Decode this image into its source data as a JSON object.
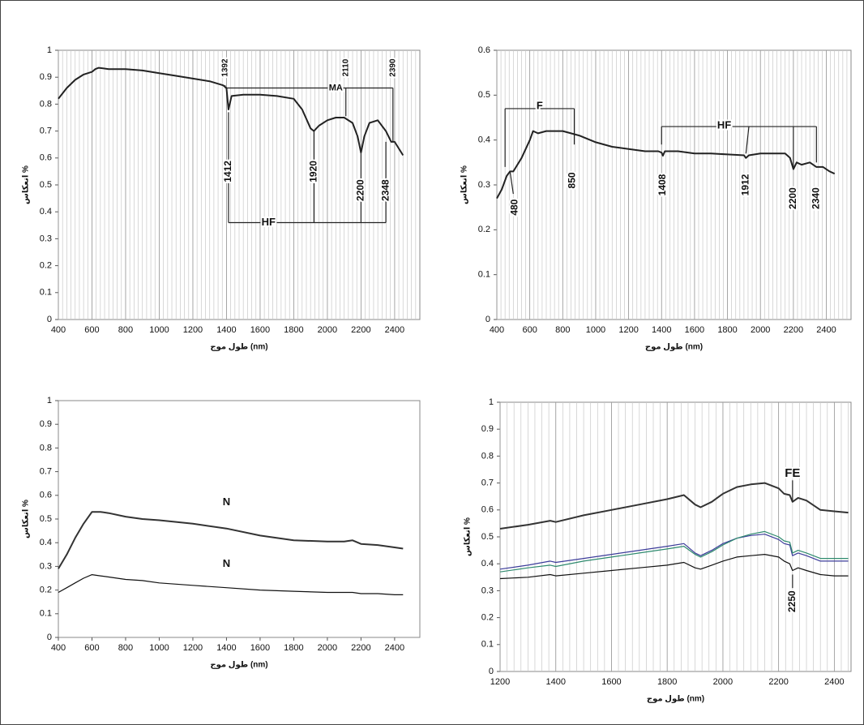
{
  "chart_data": [
    {
      "type": "line",
      "xlabel": "طول موج (nm)",
      "ylabel": "انعکاس %",
      "grid": true,
      "xlim": [
        400,
        2550
      ],
      "ylim": [
        0,
        1
      ],
      "xticks": [
        400,
        600,
        800,
        1000,
        1200,
        1400,
        1600,
        1800,
        2000,
        2200,
        2400
      ],
      "yticks": [
        0,
        0.1,
        0.2,
        0.3,
        0.4,
        0.5,
        0.6,
        0.7,
        0.8,
        0.9,
        1
      ],
      "x": [
        400,
        450,
        500,
        550,
        600,
        620,
        640,
        700,
        800,
        900,
        1000,
        1100,
        1200,
        1300,
        1380,
        1400,
        1412,
        1430,
        1500,
        1600,
        1700,
        1800,
        1850,
        1900,
        1920,
        1950,
        2000,
        2050,
        2100,
        2150,
        2180,
        2200,
        2220,
        2250,
        2300,
        2348,
        2380,
        2400,
        2450
      ],
      "series": [
        {
          "color": "#222222",
          "values": [
            0.82,
            0.86,
            0.89,
            0.91,
            0.92,
            0.93,
            0.935,
            0.93,
            0.93,
            0.925,
            0.915,
            0.905,
            0.895,
            0.885,
            0.87,
            0.86,
            0.78,
            0.83,
            0.835,
            0.835,
            0.83,
            0.82,
            0.78,
            0.71,
            0.7,
            0.72,
            0.74,
            0.75,
            0.75,
            0.73,
            0.68,
            0.62,
            0.68,
            0.73,
            0.74,
            0.7,
            0.66,
            0.66,
            0.61
          ]
        }
      ],
      "annotations": [
        "1392",
        "2110",
        "2390",
        "MA",
        "1412",
        "1920",
        "2200",
        "2348",
        "HF"
      ]
    },
    {
      "type": "line",
      "xlabel": "طول موج (nm)",
      "ylabel": "انعکاس %",
      "grid": true,
      "xlim": [
        400,
        2550
      ],
      "ylim": [
        0,
        0.6
      ],
      "xticks": [
        400,
        600,
        800,
        1000,
        1200,
        1400,
        1600,
        1800,
        2000,
        2200,
        2400
      ],
      "yticks": [
        0,
        0.1,
        0.2,
        0.3,
        0.4,
        0.5,
        0.6
      ],
      "x": [
        400,
        430,
        460,
        480,
        500,
        550,
        600,
        620,
        650,
        700,
        800,
        850,
        900,
        1000,
        1100,
        1200,
        1300,
        1380,
        1400,
        1408,
        1420,
        1500,
        1600,
        1700,
        1800,
        1900,
        1912,
        1930,
        2000,
        2100,
        2150,
        2180,
        2200,
        2220,
        2250,
        2300,
        2340,
        2380,
        2420,
        2450
      ],
      "series": [
        {
          "color": "#222222",
          "values": [
            0.27,
            0.29,
            0.32,
            0.33,
            0.33,
            0.36,
            0.4,
            0.42,
            0.415,
            0.42,
            0.42,
            0.415,
            0.41,
            0.395,
            0.385,
            0.38,
            0.375,
            0.375,
            0.372,
            0.365,
            0.375,
            0.375,
            0.37,
            0.37,
            0.368,
            0.366,
            0.36,
            0.366,
            0.37,
            0.37,
            0.37,
            0.36,
            0.335,
            0.35,
            0.345,
            0.35,
            0.34,
            0.34,
            0.33,
            0.325
          ]
        }
      ],
      "annotations": [
        "F",
        "HF",
        "480",
        "850",
        "1408",
        "1912",
        "2200",
        "2340"
      ]
    },
    {
      "type": "line",
      "xlabel": "طول موج (nm)",
      "ylabel": "انعکاس %",
      "grid": false,
      "xlim": [
        400,
        2550
      ],
      "ylim": [
        0,
        1
      ],
      "xticks": [
        400,
        600,
        800,
        1000,
        1200,
        1400,
        1600,
        1800,
        2000,
        2200,
        2400
      ],
      "yticks": [
        0,
        0.1,
        0.2,
        0.3,
        0.4,
        0.5,
        0.6,
        0.7,
        0.8,
        0.9,
        1
      ],
      "x": [
        400,
        450,
        500,
        550,
        600,
        650,
        700,
        800,
        900,
        1000,
        1200,
        1400,
        1600,
        1800,
        2000,
        2100,
        2150,
        2200,
        2300,
        2400,
        2450
      ],
      "series": [
        {
          "color": "#333333",
          "values": [
            0.29,
            0.35,
            0.42,
            0.48,
            0.53,
            0.53,
            0.525,
            0.51,
            0.5,
            0.495,
            0.48,
            0.46,
            0.43,
            0.41,
            0.405,
            0.405,
            0.41,
            0.395,
            0.39,
            0.38,
            0.375
          ]
        },
        {
          "color": "#111111",
          "values": [
            0.19,
            0.21,
            0.23,
            0.25,
            0.265,
            0.26,
            0.255,
            0.245,
            0.24,
            0.23,
            0.22,
            0.21,
            0.2,
            0.195,
            0.19,
            0.19,
            0.19,
            0.185,
            0.185,
            0.18,
            0.18
          ]
        }
      ],
      "annotations": [
        "N",
        "N"
      ]
    },
    {
      "type": "line",
      "xlabel": "طول موج (nm)",
      "ylabel": "انعکاس %",
      "grid": true,
      "xlim": [
        1200,
        2460
      ],
      "ylim": [
        0,
        1
      ],
      "xticks": [
        1200,
        1400,
        1600,
        1800,
        2000,
        2200,
        2400
      ],
      "yticks": [
        0,
        0.1,
        0.2,
        0.3,
        0.4,
        0.5,
        0.6,
        0.7,
        0.8,
        0.9,
        1
      ],
      "x": [
        1200,
        1300,
        1380,
        1400,
        1500,
        1600,
        1700,
        1800,
        1860,
        1900,
        1920,
        1960,
        2000,
        2050,
        2100,
        2150,
        2200,
        2220,
        2240,
        2250,
        2270,
        2300,
        2350,
        2400,
        2450
      ],
      "series": [
        {
          "color": "#333333",
          "values": [
            0.53,
            0.545,
            0.56,
            0.555,
            0.58,
            0.6,
            0.62,
            0.64,
            0.655,
            0.62,
            0.61,
            0.63,
            0.66,
            0.685,
            0.695,
            0.7,
            0.68,
            0.66,
            0.655,
            0.63,
            0.645,
            0.635,
            0.6,
            0.595,
            0.59
          ]
        },
        {
          "color": "#3c3c9a",
          "values": [
            0.38,
            0.395,
            0.41,
            0.405,
            0.42,
            0.435,
            0.45,
            0.465,
            0.475,
            0.44,
            0.43,
            0.45,
            0.475,
            0.495,
            0.505,
            0.51,
            0.49,
            0.475,
            0.47,
            0.43,
            0.44,
            0.43,
            0.41,
            0.41,
            0.41
          ]
        },
        {
          "color": "#2e8a6e",
          "values": [
            0.37,
            0.385,
            0.395,
            0.39,
            0.41,
            0.425,
            0.44,
            0.455,
            0.465,
            0.435,
            0.425,
            0.445,
            0.47,
            0.495,
            0.51,
            0.52,
            0.5,
            0.485,
            0.48,
            0.44,
            0.45,
            0.44,
            0.42,
            0.42,
            0.42
          ]
        },
        {
          "color": "#111111",
          "values": [
            0.345,
            0.35,
            0.36,
            0.355,
            0.365,
            0.375,
            0.385,
            0.395,
            0.405,
            0.385,
            0.38,
            0.395,
            0.41,
            0.425,
            0.43,
            0.435,
            0.425,
            0.41,
            0.4,
            0.375,
            0.385,
            0.375,
            0.36,
            0.355,
            0.355
          ]
        }
      ],
      "annotations": [
        "FE",
        "2250"
      ]
    }
  ]
}
